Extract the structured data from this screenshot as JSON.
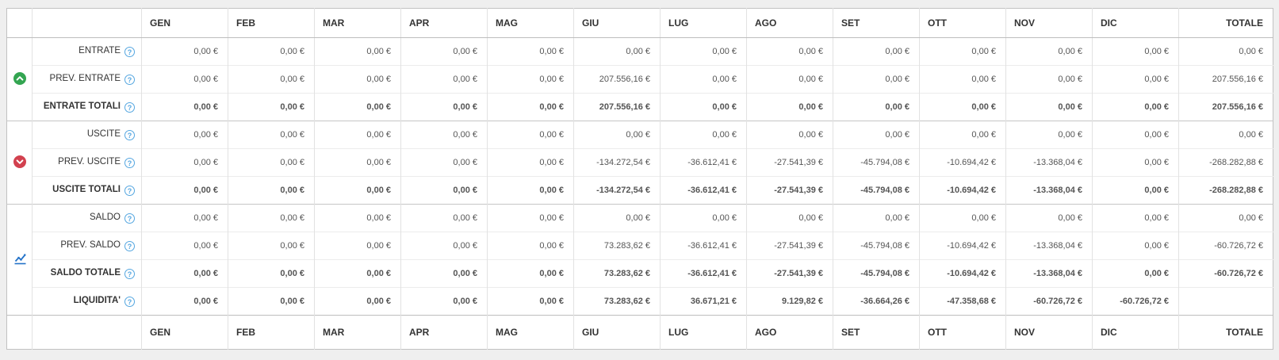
{
  "colors": {
    "positive": "#3aa24b",
    "negative": "#d9534f",
    "header_text": "#333333",
    "help_icon_blue": "#54a6e0",
    "entrate_icon_green": "#33a551",
    "uscite_icon_red": "#d2414f",
    "saldo_icon_blue": "#2372c8"
  },
  "table": {
    "months": [
      "GEN",
      "FEB",
      "MAR",
      "APR",
      "MAG",
      "GIU",
      "LUG",
      "AGO",
      "SET",
      "OTT",
      "NOV",
      "DIC"
    ],
    "total_label": "TOTALE",
    "help_glyph": "?",
    "groups": [
      {
        "name": "entrate",
        "icon": "circle-chevron-up-icon",
        "rows": [
          {
            "label": "ENTRATE",
            "bold": false,
            "values": [
              "0,00 €",
              "0,00 €",
              "0,00 €",
              "0,00 €",
              "0,00 €",
              "0,00 €",
              "0,00 €",
              "0,00 €",
              "0,00 €",
              "0,00 €",
              "0,00 €",
              "0,00 €",
              "0,00 €"
            ],
            "signs": [
              "g",
              "g",
              "g",
              "g",
              "g",
              "g",
              "g",
              "g",
              "g",
              "g",
              "g",
              "g",
              "g"
            ]
          },
          {
            "label": "PREV. ENTRATE",
            "bold": false,
            "values": [
              "0,00 €",
              "0,00 €",
              "0,00 €",
              "0,00 €",
              "0,00 €",
              "207.556,16 €",
              "0,00 €",
              "0,00 €",
              "0,00 €",
              "0,00 €",
              "0,00 €",
              "0,00 €",
              "207.556,16 €"
            ],
            "signs": [
              "g",
              "g",
              "g",
              "g",
              "g",
              "g",
              "g",
              "g",
              "g",
              "g",
              "g",
              "g",
              "g"
            ]
          },
          {
            "label": "ENTRATE TOTALI",
            "bold": true,
            "values": [
              "0,00 €",
              "0,00 €",
              "0,00 €",
              "0,00 €",
              "0,00 €",
              "207.556,16 €",
              "0,00 €",
              "0,00 €",
              "0,00 €",
              "0,00 €",
              "0,00 €",
              "0,00 €",
              "207.556,16 €"
            ],
            "signs": [
              "g",
              "g",
              "g",
              "g",
              "g",
              "g",
              "g",
              "g",
              "g",
              "g",
              "g",
              "g",
              "g"
            ]
          }
        ]
      },
      {
        "name": "uscite",
        "icon": "circle-chevron-down-icon",
        "rows": [
          {
            "label": "USCITE",
            "bold": false,
            "values": [
              "0,00 €",
              "0,00 €",
              "0,00 €",
              "0,00 €",
              "0,00 €",
              "0,00 €",
              "0,00 €",
              "0,00 €",
              "0,00 €",
              "0,00 €",
              "0,00 €",
              "0,00 €",
              "0,00 €"
            ],
            "signs": [
              "r",
              "r",
              "r",
              "r",
              "r",
              "r",
              "r",
              "r",
              "r",
              "r",
              "r",
              "r",
              "r"
            ]
          },
          {
            "label": "PREV. USCITE",
            "bold": false,
            "values": [
              "0,00 €",
              "0,00 €",
              "0,00 €",
              "0,00 €",
              "0,00 €",
              "-134.272,54 €",
              "-36.612,41 €",
              "-27.541,39 €",
              "-45.794,08 €",
              "-10.694,42 €",
              "-13.368,04 €",
              "0,00 €",
              "-268.282,88 €"
            ],
            "signs": [
              "r",
              "r",
              "r",
              "r",
              "r",
              "r",
              "r",
              "r",
              "r",
              "r",
              "r",
              "r",
              "r"
            ]
          },
          {
            "label": "USCITE TOTALI",
            "bold": true,
            "values": [
              "0,00 €",
              "0,00 €",
              "0,00 €",
              "0,00 €",
              "0,00 €",
              "-134.272,54 €",
              "-36.612,41 €",
              "-27.541,39 €",
              "-45.794,08 €",
              "-10.694,42 €",
              "-13.368,04 €",
              "0,00 €",
              "-268.282,88 €"
            ],
            "signs": [
              "r",
              "r",
              "r",
              "r",
              "r",
              "r",
              "r",
              "r",
              "r",
              "r",
              "r",
              "r",
              "r"
            ]
          }
        ]
      },
      {
        "name": "saldo",
        "icon": "chart-line-icon",
        "rows": [
          {
            "label": "SALDO",
            "bold": false,
            "values": [
              "0,00 €",
              "0,00 €",
              "0,00 €",
              "0,00 €",
              "0,00 €",
              "0,00 €",
              "0,00 €",
              "0,00 €",
              "0,00 €",
              "0,00 €",
              "0,00 €",
              "0,00 €",
              "0,00 €"
            ],
            "signs": [
              "g",
              "g",
              "g",
              "g",
              "g",
              "g",
              "g",
              "g",
              "g",
              "g",
              "g",
              "g",
              "g"
            ]
          },
          {
            "label": "PREV. SALDO",
            "bold": false,
            "values": [
              "0,00 €",
              "0,00 €",
              "0,00 €",
              "0,00 €",
              "0,00 €",
              "73.283,62 €",
              "-36.612,41 €",
              "-27.541,39 €",
              "-45.794,08 €",
              "-10.694,42 €",
              "-13.368,04 €",
              "0,00 €",
              "-60.726,72 €"
            ],
            "signs": [
              "g",
              "g",
              "g",
              "g",
              "g",
              "g",
              "r",
              "r",
              "r",
              "r",
              "r",
              "g",
              "r"
            ]
          },
          {
            "label": "SALDO TOTALE",
            "bold": true,
            "values": [
              "0,00 €",
              "0,00 €",
              "0,00 €",
              "0,00 €",
              "0,00 €",
              "73.283,62 €",
              "-36.612,41 €",
              "-27.541,39 €",
              "-45.794,08 €",
              "-10.694,42 €",
              "-13.368,04 €",
              "0,00 €",
              "-60.726,72 €"
            ],
            "signs": [
              "g",
              "g",
              "g",
              "g",
              "g",
              "g",
              "r",
              "r",
              "r",
              "r",
              "r",
              "g",
              "r"
            ]
          },
          {
            "label": "LIQUIDITA'",
            "bold": true,
            "values": [
              "0,00 €",
              "0,00 €",
              "0,00 €",
              "0,00 €",
              "0,00 €",
              "73.283,62 €",
              "36.671,21 €",
              "9.129,82 €",
              "-36.664,26 €",
              "-47.358,68 €",
              "-60.726,72 €",
              "-60.726,72 €",
              ""
            ],
            "signs": [
              "g",
              "g",
              "g",
              "g",
              "g",
              "g",
              "g",
              "g",
              "r",
              "r",
              "r",
              "r",
              ""
            ]
          }
        ]
      }
    ]
  }
}
